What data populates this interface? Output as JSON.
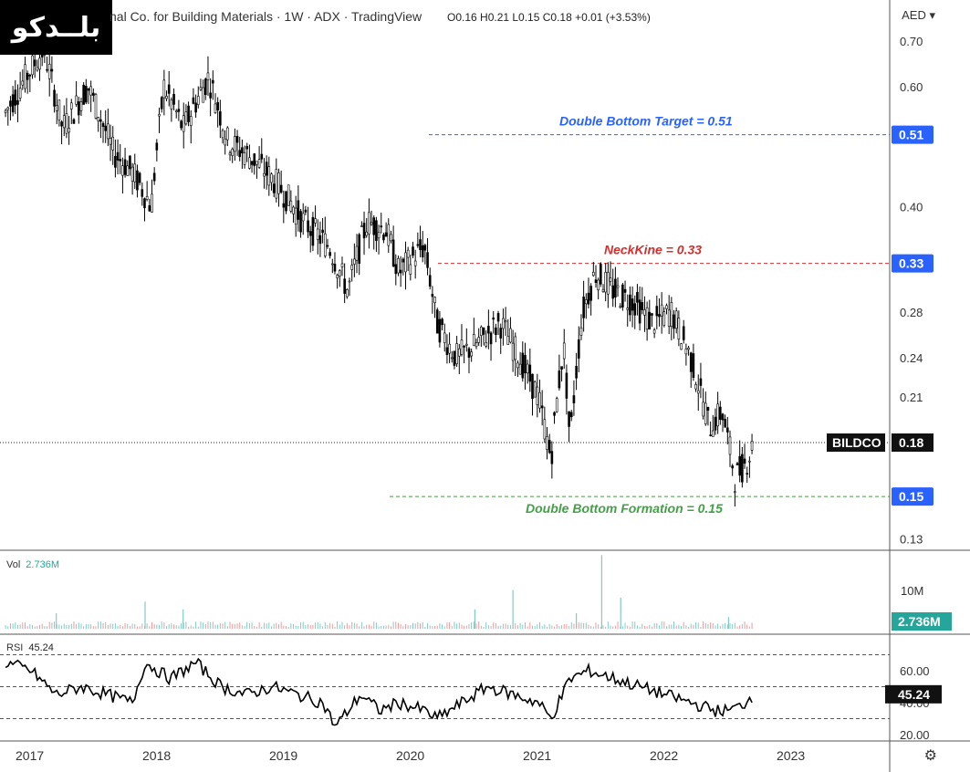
{
  "header": {
    "title": "nal Co. for Building Materials · 1W · ADX · TradingView",
    "ohlc": "O0.16 H0.21 L0.15 C0.18 +0.01 (+3.53%)",
    "currency": "AED",
    "logo_text": "بلــدكو"
  },
  "chart_data": {
    "type": "candlestick",
    "symbol": "BILDCO",
    "interval": "1W",
    "price_scale": "log",
    "y_ticks": [
      "0.70",
      "0.60",
      "0.40",
      "0.28",
      "0.24",
      "0.21",
      "0.13"
    ],
    "x_ticks": [
      "2017",
      "2018",
      "2019",
      "2020",
      "2021",
      "2022",
      "2023"
    ],
    "last_price": "0.18",
    "price_path": [
      [
        2016.9,
        0.55
      ],
      [
        2017.2,
        0.68
      ],
      [
        2017.35,
        0.52
      ],
      [
        2017.55,
        0.6
      ],
      [
        2017.75,
        0.48
      ],
      [
        2017.9,
        0.45
      ],
      [
        2018.05,
        0.4
      ],
      [
        2018.15,
        0.6
      ],
      [
        2018.3,
        0.52
      ],
      [
        2018.5,
        0.62
      ],
      [
        2018.65,
        0.5
      ],
      [
        2018.85,
        0.47
      ],
      [
        2019.05,
        0.43
      ],
      [
        2019.25,
        0.38
      ],
      [
        2019.45,
        0.35
      ],
      [
        2019.6,
        0.3
      ],
      [
        2019.75,
        0.38
      ],
      [
        2019.9,
        0.37
      ],
      [
        2020.0,
        0.32
      ],
      [
        2020.2,
        0.35
      ],
      [
        2020.3,
        0.27
      ],
      [
        2020.45,
        0.24
      ],
      [
        2020.6,
        0.25
      ],
      [
        2020.8,
        0.27
      ],
      [
        2020.95,
        0.24
      ],
      [
        2021.1,
        0.21
      ],
      [
        2021.2,
        0.17
      ],
      [
        2021.3,
        0.25
      ],
      [
        2021.35,
        0.18
      ],
      [
        2021.45,
        0.28
      ],
      [
        2021.55,
        0.32
      ],
      [
        2021.7,
        0.3
      ],
      [
        2021.85,
        0.29
      ],
      [
        2022.0,
        0.27
      ],
      [
        2022.15,
        0.28
      ],
      [
        2022.3,
        0.24
      ],
      [
        2022.45,
        0.19
      ],
      [
        2022.55,
        0.2
      ],
      [
        2022.65,
        0.16
      ],
      [
        2022.75,
        0.17
      ],
      [
        2022.8,
        0.18
      ]
    ],
    "annotations": [
      {
        "label": "Double Bottom Target = 0.51",
        "price": 0.51,
        "color": "#2962ff",
        "badge": "0.51"
      },
      {
        "label": "NeckKine = 0.33",
        "price": 0.33,
        "color": "#d32f2f",
        "badge": "0.33"
      },
      {
        "label": "Double Bottom Formation = 0.15",
        "price": 0.15,
        "color": "#43a047",
        "badge": "0.15"
      }
    ],
    "volume": {
      "label": "Vol",
      "value": "2.736M",
      "tick": "10M",
      "spikes": [
        [
          2017.3,
          0.2
        ],
        [
          2018.0,
          0.35
        ],
        [
          2018.3,
          0.25
        ],
        [
          2020.6,
          0.25
        ],
        [
          2020.9,
          0.5
        ],
        [
          2021.4,
          0.2
        ],
        [
          2021.6,
          0.95
        ],
        [
          2021.75,
          0.4
        ],
        [
          2022.6,
          0.15
        ]
      ]
    },
    "rsi": {
      "label": "RSI",
      "value": "45.24",
      "ticks": [
        "60.00",
        "40.00",
        "20.00"
      ],
      "upper": 70,
      "lower": 30,
      "path": [
        [
          2016.9,
          65
        ],
        [
          2017.1,
          60
        ],
        [
          2017.3,
          45
        ],
        [
          2017.5,
          50
        ],
        [
          2017.7,
          45
        ],
        [
          2017.9,
          40
        ],
        [
          2018.0,
          65
        ],
        [
          2018.2,
          55
        ],
        [
          2018.4,
          65
        ],
        [
          2018.6,
          50
        ],
        [
          2018.8,
          45
        ],
        [
          2019.0,
          50
        ],
        [
          2019.2,
          45
        ],
        [
          2019.4,
          40
        ],
        [
          2019.5,
          25
        ],
        [
          2019.7,
          45
        ],
        [
          2019.85,
          35
        ],
        [
          2020.0,
          40
        ],
        [
          2020.2,
          35
        ],
        [
          2020.3,
          30
        ],
        [
          2020.5,
          40
        ],
        [
          2020.7,
          50
        ],
        [
          2020.9,
          45
        ],
        [
          2021.1,
          40
        ],
        [
          2021.2,
          30
        ],
        [
          2021.35,
          55
        ],
        [
          2021.5,
          60
        ],
        [
          2021.7,
          55
        ],
        [
          2021.9,
          50
        ],
        [
          2022.1,
          45
        ],
        [
          2022.3,
          40
        ],
        [
          2022.5,
          35
        ],
        [
          2022.6,
          35
        ],
        [
          2022.7,
          38
        ],
        [
          2022.8,
          45
        ]
      ]
    }
  },
  "series_label": "BILDCO",
  "rsi_badge": "45.24",
  "vol_badge": "2.736M"
}
